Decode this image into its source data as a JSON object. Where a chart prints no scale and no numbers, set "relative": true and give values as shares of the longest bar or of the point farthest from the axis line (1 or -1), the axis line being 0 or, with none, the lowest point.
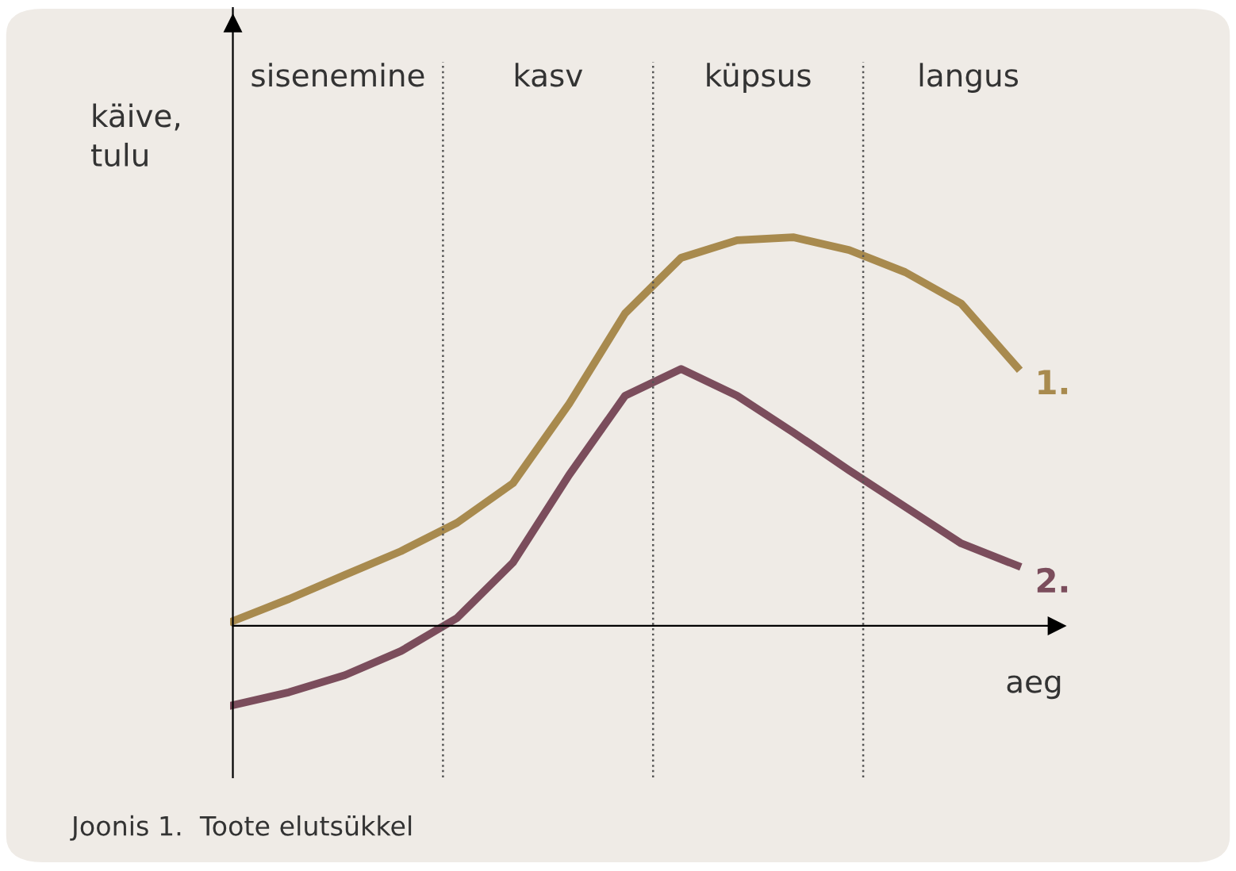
{
  "chart_data": {
    "type": "line",
    "relative": true,
    "ylabel": "käive,\ntulu",
    "xlabel": "aeg",
    "categories": [
      null,
      null,
      null,
      null,
      null,
      null,
      null,
      null,
      null,
      null,
      null,
      null,
      null,
      null,
      null
    ],
    "series": [
      {
        "name": "1.",
        "color": "#a88a4e",
        "values": [
          0.012,
          0.069,
          0.131,
          0.192,
          0.265,
          0.367,
          0.571,
          0.804,
          0.947,
          0.992,
          1.0,
          0.967,
          0.91,
          0.829,
          0.665
        ]
      },
      {
        "name": "2.",
        "color": "#7b4d5c",
        "values": [
          -0.204,
          -0.171,
          -0.127,
          -0.065,
          0.02,
          0.163,
          0.388,
          0.592,
          0.661,
          0.592,
          0.498,
          0.4,
          0.306,
          0.212,
          0.155
        ]
      }
    ],
    "annotations": [
      "sisenemine",
      "kasv",
      "küpsus",
      "langus",
      "Joonis 1.  Toote elutsükkel"
    ],
    "line_style": "solid",
    "marker": "none",
    "grid": false,
    "legend": false
  }
}
